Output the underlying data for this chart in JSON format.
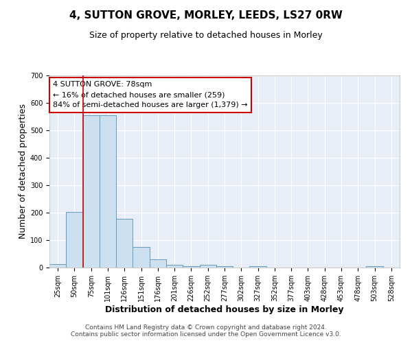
{
  "title": "4, SUTTON GROVE, MORLEY, LEEDS, LS27 0RW",
  "subtitle": "Size of property relative to detached houses in Morley",
  "xlabel": "Distribution of detached houses by size in Morley",
  "ylabel": "Number of detached properties",
  "bar_labels": [
    "25sqm",
    "50sqm",
    "75sqm",
    "101sqm",
    "126sqm",
    "151sqm",
    "176sqm",
    "201sqm",
    "226sqm",
    "252sqm",
    "277sqm",
    "302sqm",
    "327sqm",
    "352sqm",
    "377sqm",
    "403sqm",
    "428sqm",
    "453sqm",
    "478sqm",
    "503sqm",
    "528sqm"
  ],
  "bar_values": [
    12,
    203,
    555,
    555,
    178,
    75,
    30,
    10,
    5,
    10,
    5,
    0,
    5,
    0,
    0,
    0,
    0,
    0,
    0,
    5,
    0
  ],
  "bar_color": "#cce0f0",
  "bar_edge_color": "#6699bb",
  "vline_x": 2.0,
  "vline_color": "#cc0000",
  "annotation_text": "4 SUTTON GROVE: 78sqm\n← 16% of detached houses are smaller (259)\n84% of semi-detached houses are larger (1,379) →",
  "annotation_box_color": "#ffffff",
  "annotation_box_edge": "#cc0000",
  "ylim": [
    0,
    700
  ],
  "yticks": [
    0,
    100,
    200,
    300,
    400,
    500,
    600,
    700
  ],
  "footer_text": "Contains HM Land Registry data © Crown copyright and database right 2024.\nContains public sector information licensed under the Open Government Licence v3.0.",
  "background_color": "#ffffff",
  "plot_background": "#e8eef8",
  "grid_color": "#ffffff",
  "title_fontsize": 11,
  "subtitle_fontsize": 9,
  "axis_label_fontsize": 9,
  "tick_fontsize": 7,
  "footer_fontsize": 6.5
}
